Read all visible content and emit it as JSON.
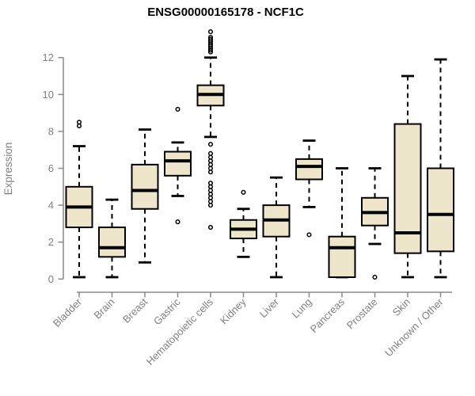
{
  "title": "ENSG00000165178 - NCF1C",
  "chart_data": {
    "type": "boxplot",
    "title": "ENSG00000165178 - NCF1C",
    "xlabel": "",
    "ylabel": "Expression",
    "ylim": [
      0,
      12
    ],
    "yticks": [
      0,
      2,
      4,
      6,
      8,
      10,
      12
    ],
    "grid": false,
    "legend_position": "none",
    "categories": [
      "Bladder",
      "Brain",
      "Breast",
      "Gastric",
      "Hematopoietic cells",
      "Kidney",
      "Liver",
      "Lung",
      "Pancreas",
      "Prostate",
      "Skin",
      "Unknown / Other"
    ],
    "boxes": [
      {
        "category": "Bladder",
        "whisker_low": 0.1,
        "q1": 2.8,
        "median": 3.9,
        "q3": 5.0,
        "whisker_high": 7.2,
        "outliers": [
          8.3,
          8.5
        ]
      },
      {
        "category": "Brain",
        "whisker_low": 0.1,
        "q1": 1.2,
        "median": 1.7,
        "q3": 2.8,
        "whisker_high": 4.3,
        "outliers": []
      },
      {
        "category": "Breast",
        "whisker_low": 0.9,
        "q1": 3.8,
        "median": 4.8,
        "q3": 6.2,
        "whisker_high": 8.1,
        "outliers": []
      },
      {
        "category": "Gastric",
        "whisker_low": 4.5,
        "q1": 5.6,
        "median": 6.4,
        "q3": 6.9,
        "whisker_high": 7.4,
        "outliers": [
          3.1,
          9.2
        ]
      },
      {
        "category": "Hematopoietic cells",
        "whisker_low": 7.7,
        "q1": 9.4,
        "median": 10.0,
        "q3": 10.5,
        "whisker_high": 12.0,
        "outliers": [
          2.8,
          4.0,
          4.2,
          4.4,
          4.6,
          4.8,
          5.0,
          5.2,
          5.8,
          6.0,
          6.2,
          6.4,
          6.6,
          6.8,
          7.3,
          12.3,
          12.4,
          12.5,
          12.6,
          12.7,
          12.8,
          12.9,
          13.0,
          13.1,
          13.4
        ]
      },
      {
        "category": "Kidney",
        "whisker_low": 1.2,
        "q1": 2.2,
        "median": 2.7,
        "q3": 3.2,
        "whisker_high": 3.8,
        "outliers": [
          4.7
        ]
      },
      {
        "category": "Liver",
        "whisker_low": 0.1,
        "q1": 2.3,
        "median": 3.2,
        "q3": 4.0,
        "whisker_high": 5.5,
        "outliers": []
      },
      {
        "category": "Lung",
        "whisker_low": 3.9,
        "q1": 5.4,
        "median": 6.1,
        "q3": 6.5,
        "whisker_high": 7.5,
        "outliers": [
          2.4
        ]
      },
      {
        "category": "Pancreas",
        "whisker_low": 0.1,
        "q1": 0.1,
        "median": 1.7,
        "q3": 2.3,
        "whisker_high": 6.0,
        "outliers": []
      },
      {
        "category": "Prostate",
        "whisker_low": 1.9,
        "q1": 2.9,
        "median": 3.6,
        "q3": 4.4,
        "whisker_high": 6.0,
        "outliers": [
          0.1
        ]
      },
      {
        "category": "Skin",
        "whisker_low": 0.1,
        "q1": 1.4,
        "median": 2.5,
        "q3": 8.4,
        "whisker_high": 11.0,
        "outliers": []
      },
      {
        "category": "Unknown / Other",
        "whisker_low": 0.1,
        "q1": 1.5,
        "median": 3.5,
        "q3": 6.0,
        "whisker_high": 11.9,
        "outliers": []
      }
    ],
    "colors": {
      "background": "#ffffff",
      "box_fill": "#ede6cb",
      "box_border": "#000000",
      "median": "#000000",
      "whisker": "#000000",
      "outlier": "#000000",
      "axis_line": "#888888",
      "tick_label": "#808080",
      "axis_title": "#808080",
      "title": "#000000"
    }
  }
}
